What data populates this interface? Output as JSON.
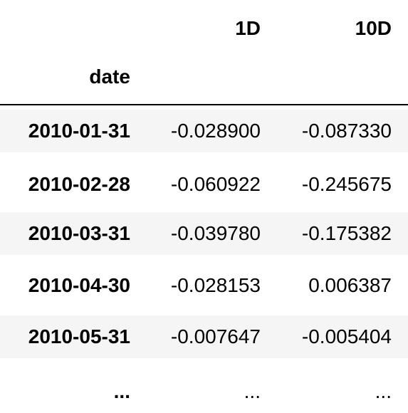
{
  "dataframe": {
    "columns": [
      "",
      "1D",
      "10D"
    ],
    "index_name": "date",
    "rows": [
      {
        "index": "2010-01-31",
        "values": [
          "-0.028900",
          "-0.087330"
        ]
      },
      {
        "index": "2010-02-28",
        "values": [
          "-0.060922",
          "-0.245675"
        ]
      },
      {
        "index": "2010-03-31",
        "values": [
          "-0.039780",
          "-0.175382"
        ]
      },
      {
        "index": "2010-04-30",
        "values": [
          "-0.028153",
          "0.006387"
        ]
      },
      {
        "index": "2010-05-31",
        "values": [
          "-0.007647",
          "-0.005404"
        ]
      },
      {
        "index": "...",
        "values": [
          "...",
          "..."
        ]
      }
    ]
  }
}
